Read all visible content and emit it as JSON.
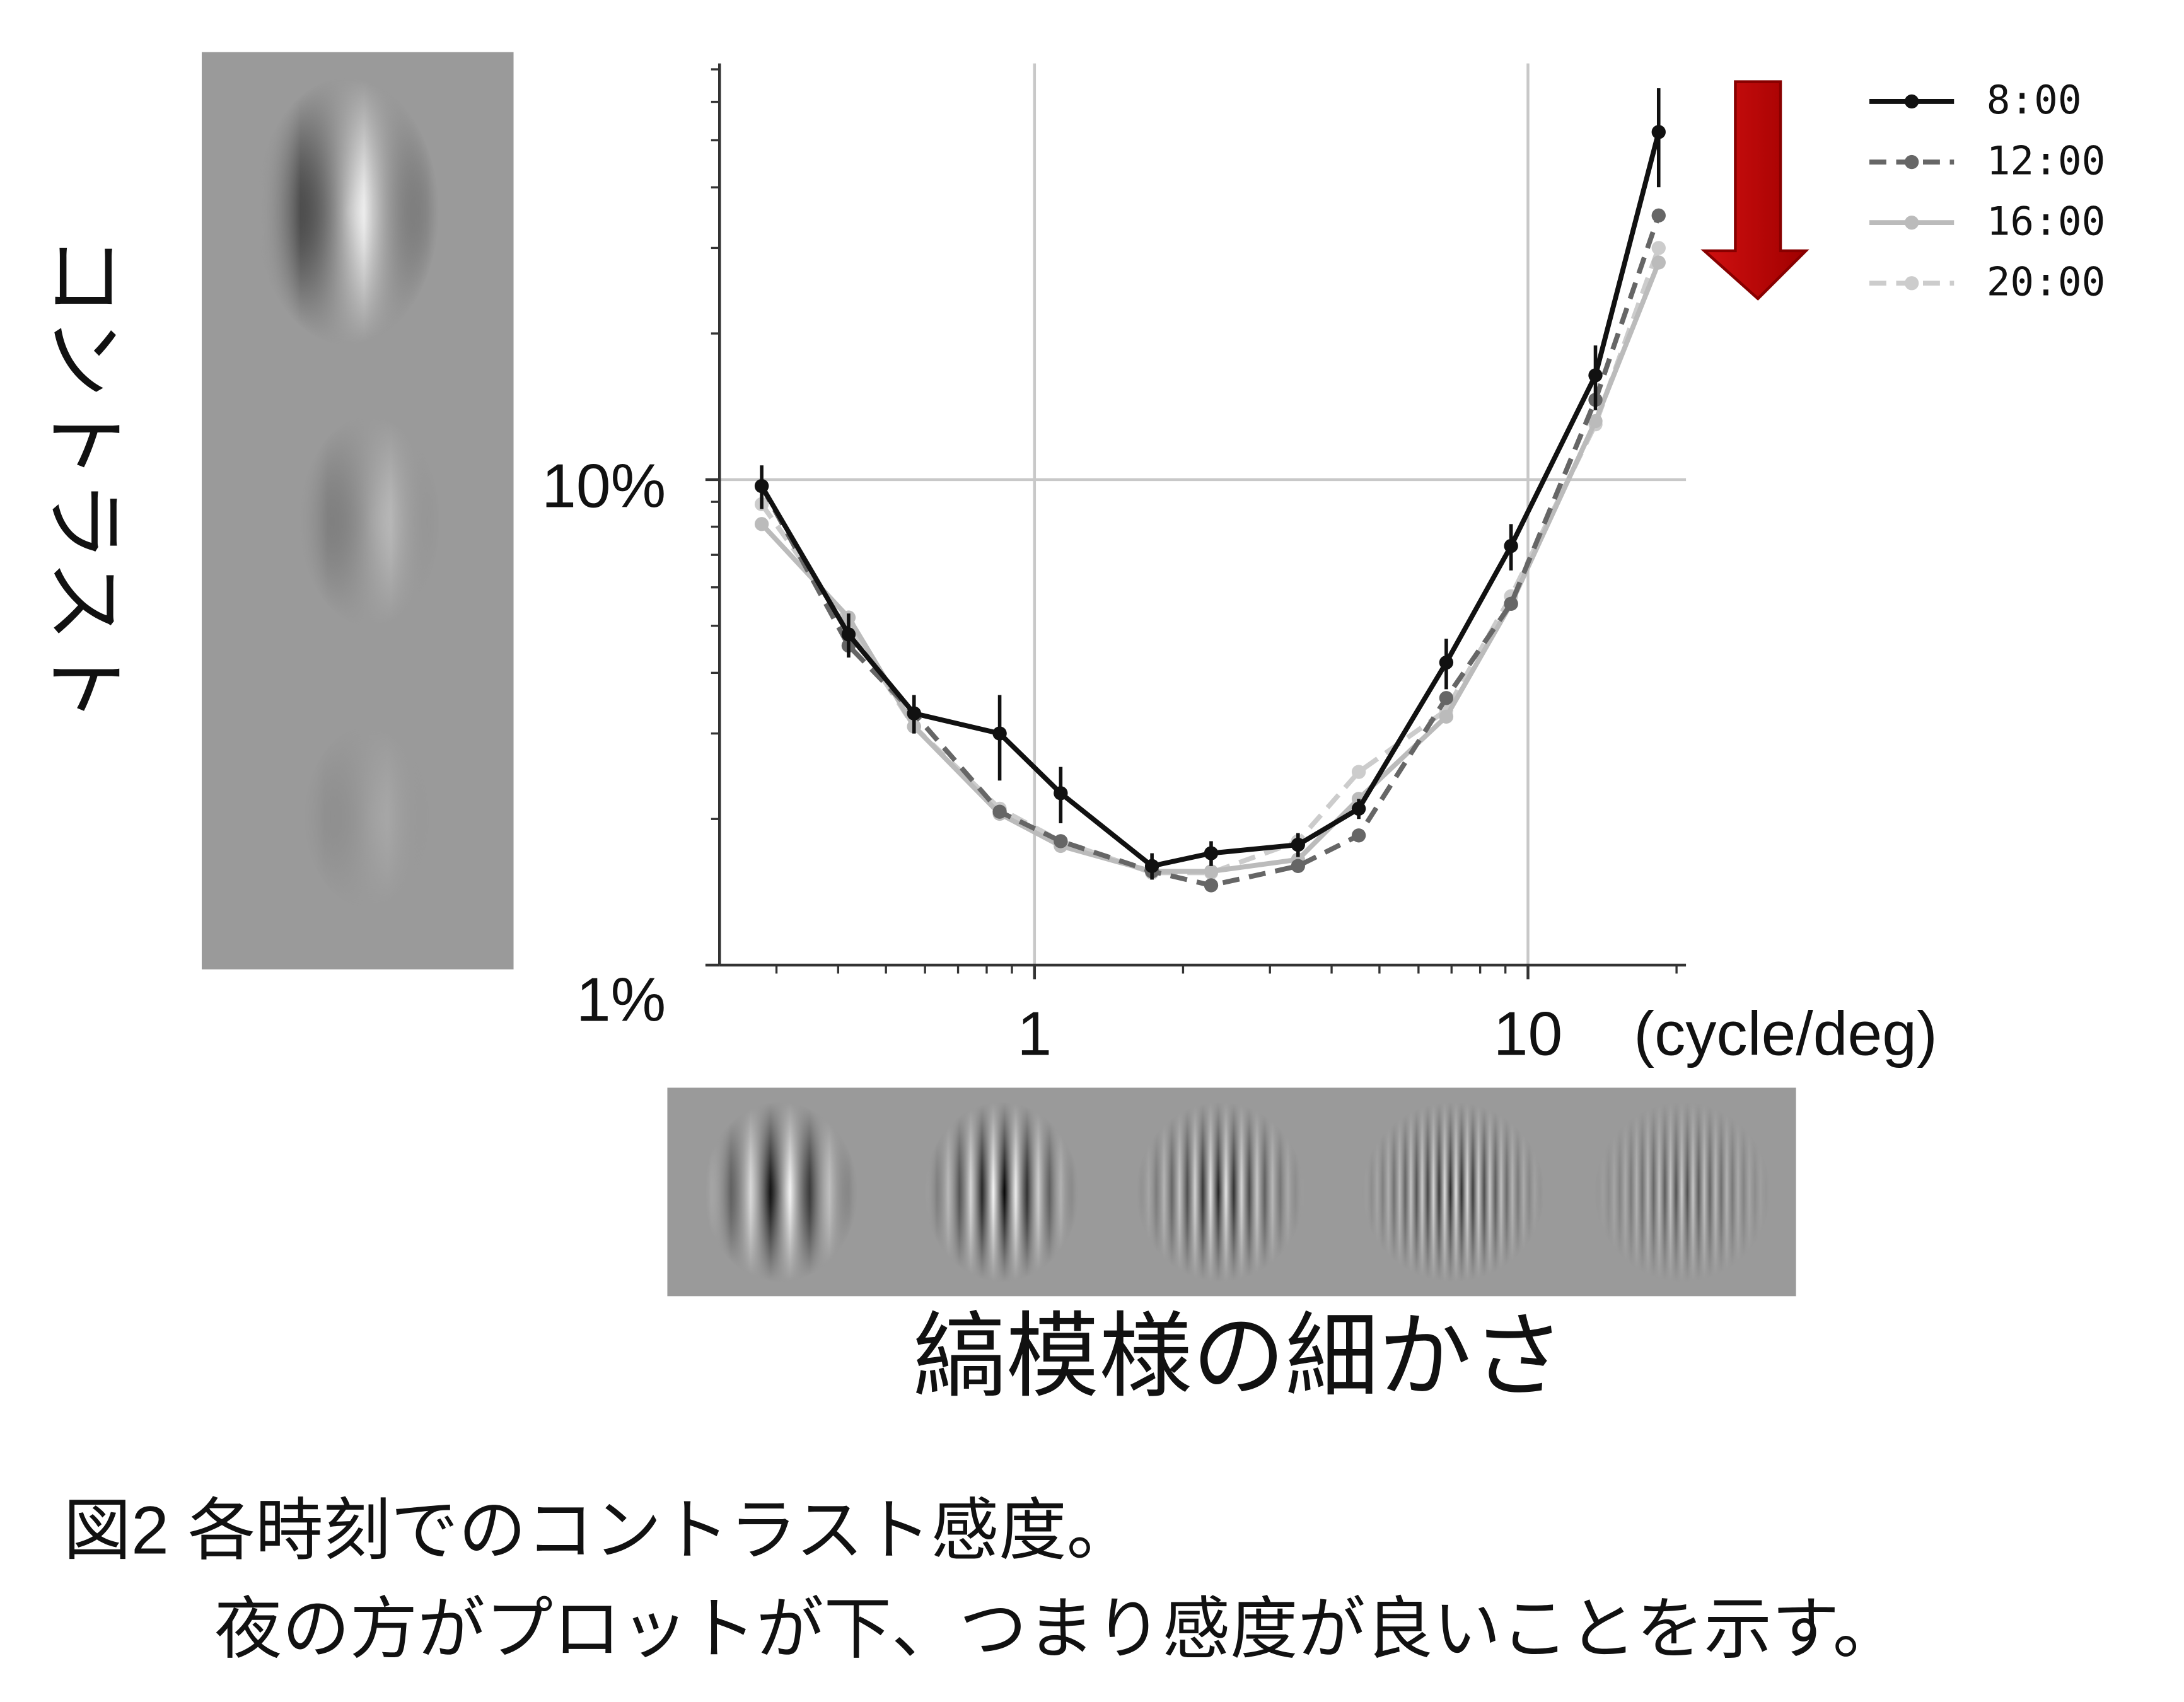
{
  "chart_data": {
    "type": "line",
    "y_label": "コントラスト",
    "x_label": "(cycle/deg)",
    "caption": "縞模様の細かさ",
    "figure_caption": [
      "図2 各時刻でのコントラスト感度。",
      "夜の方がプロットが下、つまり感度が良いことを示す。"
    ],
    "x": [
      0.28,
      0.42,
      0.57,
      0.85,
      1.13,
      1.73,
      2.28,
      3.42,
      4.54,
      6.83,
      9.24,
      13.7,
      18.4
    ],
    "series": [
      {
        "name": "8:00",
        "color": "#111111",
        "linestyle": "solid",
        "values": [
          9.7,
          4.8,
          3.3,
          3.0,
          2.26,
          1.6,
          1.7,
          1.77,
          2.1,
          4.2,
          7.3,
          16.4,
          52
        ],
        "errors": [
          1.0,
          0.5,
          0.3,
          0.6,
          0.3,
          0.1,
          0.1,
          0.1,
          0.1,
          0.5,
          0.8,
          2.5,
          12
        ]
      },
      {
        "name": "12:00",
        "color": "#666666",
        "linestyle": "dashed",
        "values": [
          9.7,
          4.55,
          3.3,
          2.07,
          1.8,
          1.56,
          1.46,
          1.6,
          1.85,
          3.55,
          5.55,
          14.6,
          35
        ]
      },
      {
        "name": "16:00",
        "color": "#bbbbbb",
        "linestyle": "solid",
        "values": [
          8.1,
          5.2,
          3.1,
          2.05,
          1.76,
          1.56,
          1.56,
          1.65,
          2.2,
          3.25,
          5.55,
          13.2,
          28
        ]
      },
      {
        "name": "20:00",
        "color": "#cccccc",
        "linestyle": "dashed",
        "values": [
          8.9,
          5.0,
          3.1,
          2.1,
          1.8,
          1.55,
          1.55,
          1.8,
          2.5,
          3.35,
          5.75,
          13,
          30
        ]
      }
    ],
    "xlim": [
      0.23,
      20.9
    ],
    "ylim": [
      1,
      72
    ],
    "xticks": [
      1,
      10
    ],
    "yticks": [
      {
        "value": 10,
        "label": "10%"
      },
      {
        "value": 1,
        "label": "1%"
      }
    ],
    "xscale": "log",
    "yscale": "log",
    "grid": true,
    "legend": "upper right"
  }
}
